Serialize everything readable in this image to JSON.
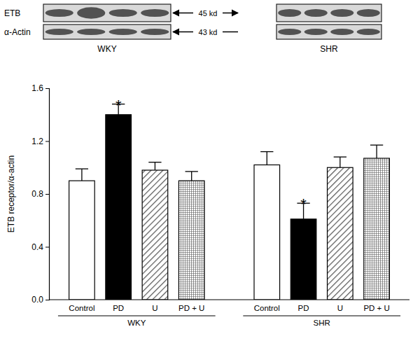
{
  "chart_data": {
    "type": "bar",
    "ylabel": "ETB receptor/α-actin",
    "categories": [
      "Control",
      "PD",
      "U",
      "PD + U",
      "Control",
      "PD",
      "U",
      "PD + U"
    ],
    "values": [
      0.9,
      1.4,
      0.98,
      0.9,
      1.02,
      0.61,
      1.0,
      1.07
    ],
    "errors": [
      0.09,
      0.08,
      0.06,
      0.07,
      0.1,
      0.12,
      0.08,
      0.1
    ],
    "colors": [
      "#ffffff",
      "#000000",
      "#555555",
      "#555555",
      "#ffffff",
      "#000000",
      "#555555",
      "#555555"
    ],
    "groups": [
      "WKY",
      "SHR"
    ],
    "ylim": [
      0,
      1.6
    ],
    "yticks": [
      {
        "value": 0,
        "label": "0.0"
      },
      0.4,
      0.8,
      1.2,
      1.6
    ],
    "annotations": [
      {
        "text": "*",
        "category": 1
      },
      {
        "text": "*",
        "category": 5
      }
    ],
    "blot": {
      "rows": [
        "ETB",
        "α-Actin"
      ],
      "sizes": [
        "45 kd",
        "43 kd"
      ],
      "panels": [
        "WKY",
        "SHR"
      ]
    }
  }
}
